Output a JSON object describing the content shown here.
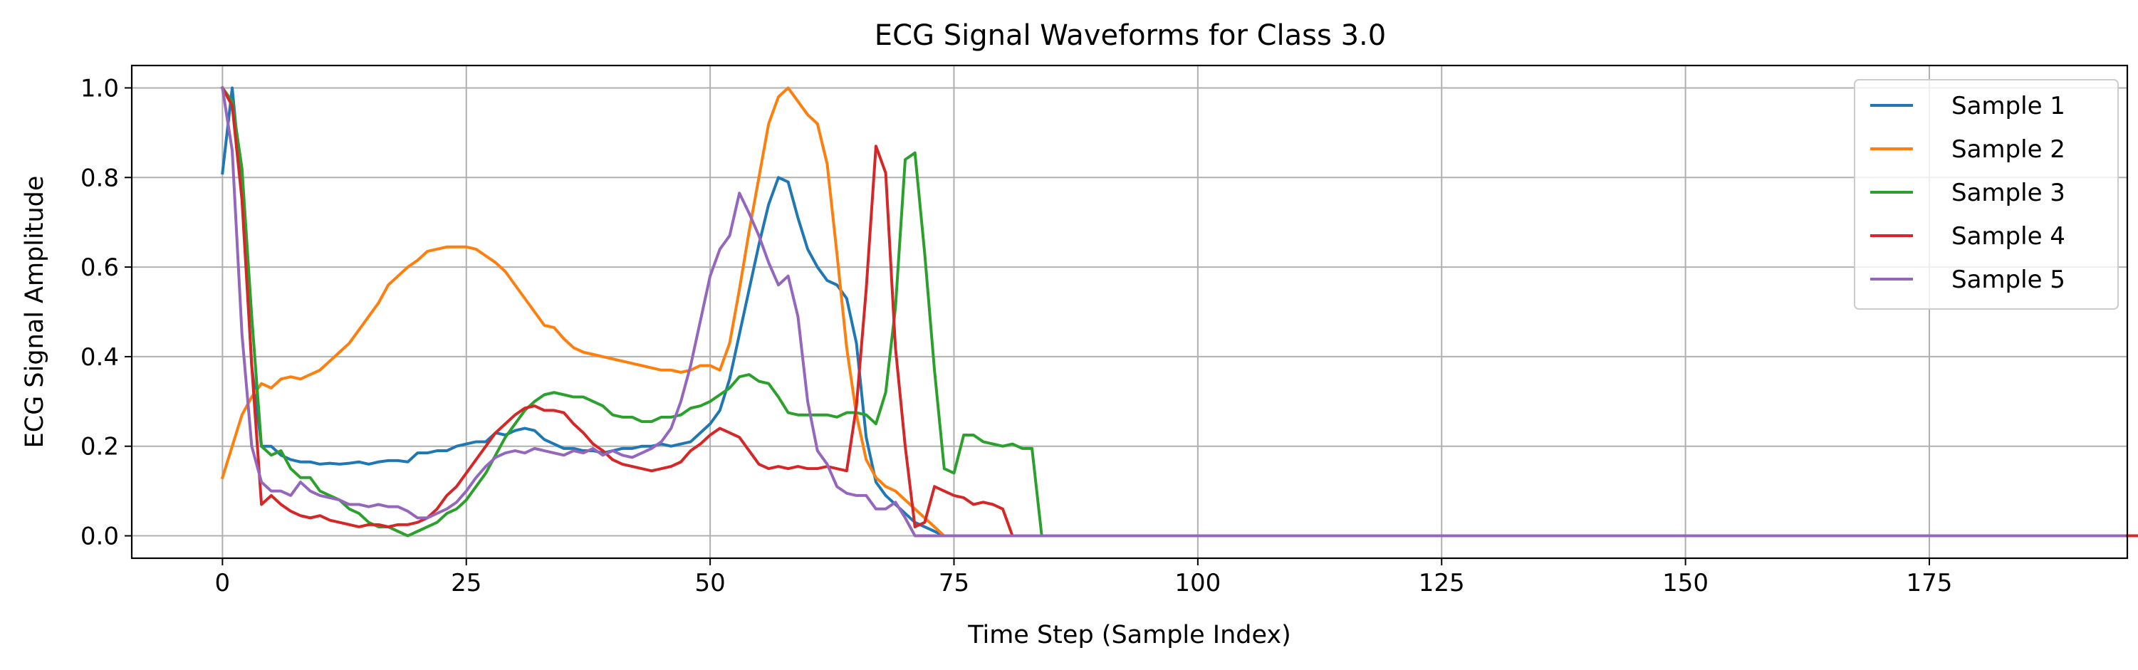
{
  "chart_data": {
    "type": "line",
    "title": "ECG Signal Waveforms for Class 3.0",
    "xlabel": "Time Step (Sample Index)",
    "ylabel": "ECG Signal Amplitude",
    "xlim": [
      -9.3,
      195.3
    ],
    "ylim": [
      -0.05,
      1.05
    ],
    "xticks": [
      0,
      25,
      50,
      75,
      100,
      125,
      150,
      175
    ],
    "yticks": [
      0.0,
      0.2,
      0.4,
      0.6,
      0.8,
      1.0
    ],
    "grid": true,
    "legend_position": "top-right",
    "series": [
      {
        "name": "Sample 1",
        "color": "#1f77b4",
        "values": [
          0.81,
          1.0,
          0.77,
          0.38,
          0.2,
          0.2,
          0.18,
          0.17,
          0.165,
          0.165,
          0.16,
          0.162,
          0.16,
          0.162,
          0.165,
          0.16,
          0.165,
          0.168,
          0.168,
          0.165,
          0.185,
          0.185,
          0.19,
          0.19,
          0.2,
          0.205,
          0.21,
          0.21,
          0.23,
          0.225,
          0.235,
          0.24,
          0.235,
          0.215,
          0.205,
          0.195,
          0.195,
          0.19,
          0.19,
          0.185,
          0.19,
          0.195,
          0.195,
          0.2,
          0.2,
          0.205,
          0.2,
          0.205,
          0.21,
          0.23,
          0.25,
          0.28,
          0.35,
          0.45,
          0.55,
          0.65,
          0.74,
          0.8,
          0.79,
          0.71,
          0.64,
          0.6,
          0.57,
          0.56,
          0.53,
          0.43,
          0.22,
          0.12,
          0.09,
          0.07,
          0.05,
          0.03,
          0.02,
          0.01,
          0.0,
          0,
          0,
          0,
          0,
          0,
          0,
          0,
          0,
          0,
          0,
          0,
          0,
          0,
          0,
          0,
          0,
          0,
          0,
          0,
          0,
          0,
          0,
          0,
          0,
          0,
          0,
          0,
          0,
          0,
          0,
          0,
          0,
          0,
          0,
          0,
          0,
          0,
          0,
          0,
          0,
          0,
          0,
          0,
          0,
          0,
          0,
          0,
          0,
          0,
          0,
          0,
          0,
          0,
          0,
          0,
          0,
          0,
          0,
          0,
          0,
          0,
          0,
          0,
          0,
          0,
          0,
          0,
          0,
          0,
          0,
          0,
          0,
          0,
          0,
          0,
          0,
          0,
          0,
          0,
          0,
          0,
          0,
          0,
          0,
          0,
          0,
          0,
          0,
          0,
          0,
          0,
          0,
          0,
          0,
          0,
          0,
          0,
          0,
          0,
          0,
          0,
          0,
          0,
          0,
          0,
          0,
          0,
          0,
          0,
          0,
          0,
          0,
          0,
          0,
          0,
          0,
          0,
          0,
          0,
          0,
          0,
          0,
          0,
          0
        ]
      },
      {
        "name": "Sample 2",
        "color": "#ff7f0e",
        "values": [
          0.13,
          0.2,
          0.27,
          0.31,
          0.34,
          0.33,
          0.35,
          0.355,
          0.35,
          0.36,
          0.37,
          0.39,
          0.41,
          0.43,
          0.46,
          0.49,
          0.52,
          0.56,
          0.58,
          0.6,
          0.615,
          0.635,
          0.64,
          0.645,
          0.645,
          0.645,
          0.64,
          0.625,
          0.61,
          0.59,
          0.56,
          0.53,
          0.5,
          0.47,
          0.465,
          0.44,
          0.42,
          0.41,
          0.405,
          0.4,
          0.395,
          0.39,
          0.385,
          0.38,
          0.375,
          0.37,
          0.37,
          0.365,
          0.37,
          0.38,
          0.38,
          0.37,
          0.43,
          0.55,
          0.68,
          0.8,
          0.92,
          0.98,
          1.0,
          0.97,
          0.94,
          0.92,
          0.83,
          0.63,
          0.42,
          0.27,
          0.17,
          0.13,
          0.11,
          0.1,
          0.08,
          0.06,
          0.04,
          0.02,
          0.0,
          0,
          0,
          0,
          0,
          0,
          0,
          0,
          0,
          0,
          0,
          0,
          0,
          0,
          0,
          0,
          0,
          0,
          0,
          0,
          0,
          0,
          0,
          0,
          0,
          0,
          0,
          0,
          0,
          0,
          0,
          0,
          0,
          0,
          0,
          0,
          0,
          0,
          0,
          0,
          0,
          0,
          0,
          0,
          0,
          0,
          0,
          0,
          0,
          0,
          0,
          0,
          0,
          0,
          0,
          0,
          0,
          0,
          0,
          0,
          0,
          0,
          0,
          0,
          0,
          0,
          0,
          0,
          0,
          0,
          0,
          0,
          0,
          0,
          0,
          0,
          0,
          0,
          0,
          0,
          0,
          0,
          0,
          0,
          0,
          0,
          0,
          0,
          0,
          0,
          0,
          0,
          0,
          0,
          0,
          0,
          0,
          0,
          0,
          0,
          0,
          0,
          0,
          0,
          0,
          0,
          0,
          0,
          0,
          0,
          0,
          0,
          0,
          0,
          0,
          0,
          0,
          0,
          0,
          0,
          0,
          0,
          0,
          0,
          0
        ]
      },
      {
        "name": "Sample 3",
        "color": "#2ca02c",
        "values": [
          1.0,
          0.97,
          0.82,
          0.49,
          0.2,
          0.18,
          0.19,
          0.15,
          0.13,
          0.13,
          0.1,
          0.09,
          0.08,
          0.06,
          0.05,
          0.03,
          0.02,
          0.02,
          0.01,
          0.0,
          0.01,
          0.02,
          0.03,
          0.05,
          0.06,
          0.08,
          0.11,
          0.14,
          0.18,
          0.22,
          0.25,
          0.28,
          0.3,
          0.315,
          0.32,
          0.315,
          0.31,
          0.31,
          0.3,
          0.29,
          0.27,
          0.265,
          0.265,
          0.255,
          0.255,
          0.265,
          0.265,
          0.27,
          0.285,
          0.29,
          0.3,
          0.315,
          0.33,
          0.355,
          0.36,
          0.345,
          0.34,
          0.31,
          0.275,
          0.27,
          0.27,
          0.27,
          0.27,
          0.265,
          0.275,
          0.275,
          0.27,
          0.25,
          0.32,
          0.51,
          0.84,
          0.855,
          0.63,
          0.37,
          0.15,
          0.14,
          0.225,
          0.225,
          0.21,
          0.205,
          0.2,
          0.205,
          0.195,
          0.195,
          0.0,
          0,
          0,
          0,
          0,
          0,
          0,
          0,
          0,
          0,
          0,
          0,
          0,
          0,
          0,
          0,
          0,
          0,
          0,
          0,
          0,
          0,
          0,
          0,
          0,
          0,
          0,
          0,
          0,
          0,
          0,
          0,
          0,
          0,
          0,
          0,
          0,
          0,
          0,
          0,
          0,
          0,
          0,
          0,
          0,
          0,
          0,
          0,
          0,
          0,
          0,
          0,
          0,
          0,
          0,
          0,
          0,
          0,
          0,
          0,
          0,
          0,
          0,
          0,
          0,
          0,
          0,
          0,
          0,
          0,
          0,
          0,
          0,
          0,
          0,
          0,
          0,
          0,
          0,
          0,
          0,
          0,
          0,
          0,
          0,
          0,
          0,
          0,
          0,
          0,
          0,
          0,
          0,
          0,
          0,
          0,
          0,
          0,
          0,
          0,
          0,
          0,
          0,
          0,
          0,
          0,
          0,
          0,
          0,
          0,
          0,
          0,
          0,
          0
        ]
      },
      {
        "name": "Sample 4",
        "color": "#d62728",
        "values": [
          1.0,
          0.96,
          0.75,
          0.38,
          0.07,
          0.09,
          0.07,
          0.055,
          0.045,
          0.04,
          0.045,
          0.035,
          0.03,
          0.025,
          0.02,
          0.025,
          0.025,
          0.02,
          0.025,
          0.025,
          0.03,
          0.04,
          0.06,
          0.09,
          0.11,
          0.14,
          0.17,
          0.2,
          0.23,
          0.25,
          0.27,
          0.285,
          0.29,
          0.28,
          0.28,
          0.275,
          0.25,
          0.23,
          0.205,
          0.19,
          0.17,
          0.16,
          0.155,
          0.15,
          0.145,
          0.15,
          0.155,
          0.165,
          0.19,
          0.205,
          0.225,
          0.24,
          0.23,
          0.22,
          0.19,
          0.16,
          0.15,
          0.155,
          0.15,
          0.155,
          0.15,
          0.15,
          0.155,
          0.15,
          0.145,
          0.29,
          0.55,
          0.87,
          0.81,
          0.42,
          0.2,
          0.02,
          0.03,
          0.11,
          0.1,
          0.09,
          0.085,
          0.07,
          0.075,
          0.07,
          0.06,
          0.0,
          0,
          0,
          0,
          0,
          0,
          0,
          0,
          0,
          0,
          0,
          0,
          0,
          0,
          0,
          0,
          0,
          0,
          0,
          0,
          0,
          0,
          0,
          0,
          0,
          0,
          0,
          0,
          0,
          0,
          0,
          0,
          0,
          0,
          0,
          0,
          0,
          0,
          0,
          0,
          0,
          0,
          0,
          0,
          0,
          0,
          0,
          0,
          0,
          0,
          0,
          0,
          0,
          0,
          0,
          0,
          0,
          0,
          0,
          0,
          0,
          0,
          0,
          0,
          0,
          0,
          0,
          0,
          0,
          0,
          0,
          0,
          0,
          0,
          0,
          0,
          0,
          0,
          0,
          0,
          0,
          0,
          0,
          0,
          0,
          0,
          0,
          0,
          0,
          0,
          0,
          0,
          0,
          0,
          0,
          0,
          0,
          0,
          0,
          0,
          0,
          0,
          0,
          0,
          0,
          0,
          0,
          0,
          0,
          0,
          0,
          0,
          0,
          0,
          0,
          0,
          0,
          0
        ]
      },
      {
        "name": "Sample 5",
        "color": "#9467bd",
        "values": [
          1.0,
          0.86,
          0.45,
          0.2,
          0.12,
          0.1,
          0.1,
          0.09,
          0.12,
          0.1,
          0.09,
          0.085,
          0.08,
          0.07,
          0.07,
          0.065,
          0.07,
          0.065,
          0.065,
          0.055,
          0.04,
          0.04,
          0.05,
          0.06,
          0.075,
          0.1,
          0.13,
          0.155,
          0.175,
          0.185,
          0.19,
          0.185,
          0.195,
          0.19,
          0.185,
          0.18,
          0.19,
          0.185,
          0.195,
          0.18,
          0.19,
          0.18,
          0.175,
          0.185,
          0.195,
          0.21,
          0.24,
          0.3,
          0.38,
          0.48,
          0.58,
          0.64,
          0.67,
          0.765,
          0.72,
          0.67,
          0.61,
          0.56,
          0.58,
          0.49,
          0.3,
          0.19,
          0.16,
          0.11,
          0.095,
          0.09,
          0.09,
          0.06,
          0.06,
          0.075,
          0.04,
          0.0,
          0,
          0,
          0,
          0,
          0,
          0,
          0,
          0,
          0,
          0,
          0,
          0,
          0,
          0,
          0,
          0,
          0,
          0,
          0,
          0,
          0,
          0,
          0,
          0,
          0,
          0,
          0,
          0,
          0,
          0,
          0,
          0,
          0,
          0,
          0,
          0,
          0,
          0,
          0,
          0,
          0,
          0,
          0,
          0,
          0,
          0,
          0,
          0,
          0,
          0,
          0,
          0,
          0,
          0,
          0,
          0,
          0,
          0,
          0,
          0,
          0,
          0,
          0,
          0,
          0,
          0,
          0,
          0,
          0,
          0,
          0,
          0,
          0,
          0,
          0,
          0,
          0,
          0,
          0,
          0,
          0,
          0,
          0,
          0,
          0,
          0,
          0,
          0,
          0,
          0,
          0,
          0,
          0,
          0,
          0,
          0,
          0,
          0,
          0,
          0,
          0,
          0,
          0,
          0,
          0,
          0,
          0,
          0,
          0,
          0,
          0,
          0,
          0,
          0,
          0,
          0,
          0,
          0,
          0,
          0,
          0,
          0,
          0,
          0
        ]
      }
    ]
  }
}
